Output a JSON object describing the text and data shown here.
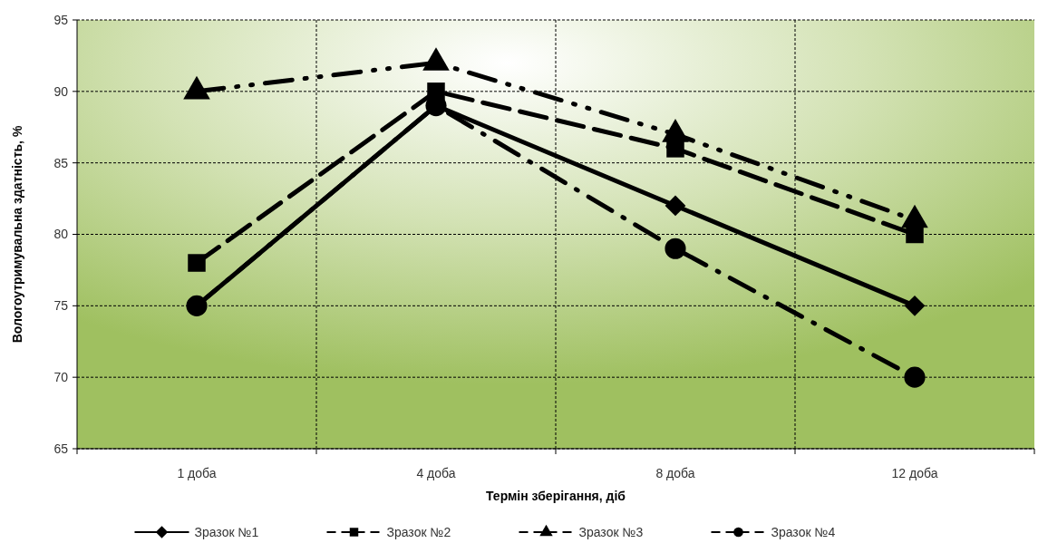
{
  "chart_data": {
    "type": "line",
    "xlabel": "Термін зберігання, діб",
    "ylabel": "Вологоутримувальна здатність, %",
    "categories": [
      "1 доба",
      "4 доба",
      "8 доба",
      "12 доба"
    ],
    "ylim": [
      65,
      95
    ],
    "yticks": [
      65,
      70,
      75,
      80,
      85,
      90,
      95
    ],
    "grid": true,
    "legend": "bottom",
    "series": [
      {
        "name": "Зразок №1",
        "color": "#000000",
        "marker": "diamond",
        "line_style": "solid",
        "values": [
          75,
          89,
          82,
          75
        ]
      },
      {
        "name": "Зразок №2",
        "color": "#000000",
        "marker": "square",
        "line_style": "dashed",
        "values": [
          78,
          90,
          86,
          80
        ]
      },
      {
        "name": "Зразок №3",
        "color": "#000000",
        "marker": "triangle",
        "line_style": "dashed",
        "values": [
          90,
          92,
          87,
          81
        ]
      },
      {
        "name": "Зразок №4",
        "color": "#000000",
        "marker": "circle",
        "line_style": "dashed",
        "values": [
          75,
          89,
          79,
          70
        ]
      }
    ]
  }
}
